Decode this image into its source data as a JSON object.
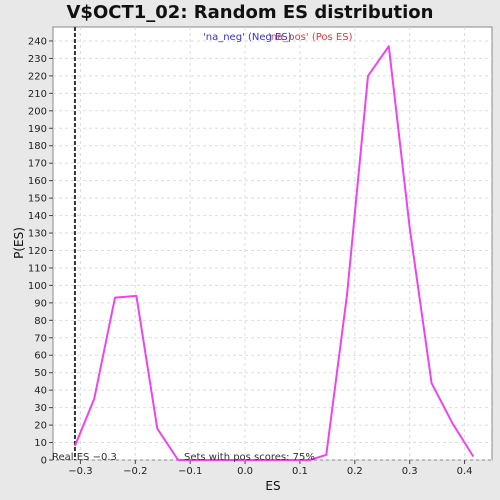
{
  "chart_data": {
    "type": "line",
    "title": "V$OCT1_02: Random ES distribution",
    "xlabel": "ES",
    "ylabel": "P(ES)",
    "xlim": [
      -0.35,
      0.45
    ],
    "ylim": [
      0,
      248
    ],
    "x_ticks": [
      -0.3,
      -0.2,
      -0.1,
      0.0,
      0.1,
      0.2,
      0.3,
      0.4
    ],
    "x_tick_labels": [
      "−0.3",
      "−0.2",
      "−0.1",
      "0.0",
      "0.1",
      "0.2",
      "0.3",
      "0.4"
    ],
    "y_ticks": [
      0,
      10,
      20,
      30,
      40,
      50,
      60,
      70,
      80,
      90,
      100,
      110,
      120,
      130,
      140,
      150,
      160,
      170,
      180,
      190,
      200,
      210,
      220,
      230,
      240
    ],
    "grid": true,
    "legend_position": "top-center",
    "series": [
      {
        "name": "'na_neg' (Neg ES)",
        "color": "#3333cc",
        "x": [],
        "y": []
      },
      {
        "name": "'na_pos' (Pos ES)",
        "color": "#ee44ee",
        "x": [
          -0.31,
          -0.275,
          -0.237,
          -0.198,
          -0.16,
          -0.122,
          -0.085,
          0.0,
          0.118,
          0.148,
          0.186,
          0.224,
          0.262,
          0.3,
          0.34,
          0.378,
          0.416
        ],
        "y": [
          8,
          35,
          93,
          94,
          18,
          0,
          0,
          0,
          0,
          3,
          95,
          220,
          237,
          133,
          44,
          21,
          2
        ]
      }
    ],
    "annotations": {
      "real_es_x": -0.31,
      "real_es_label": "Real ES −0.3",
      "sets_label": "Sets with pos scores: 75%"
    }
  }
}
